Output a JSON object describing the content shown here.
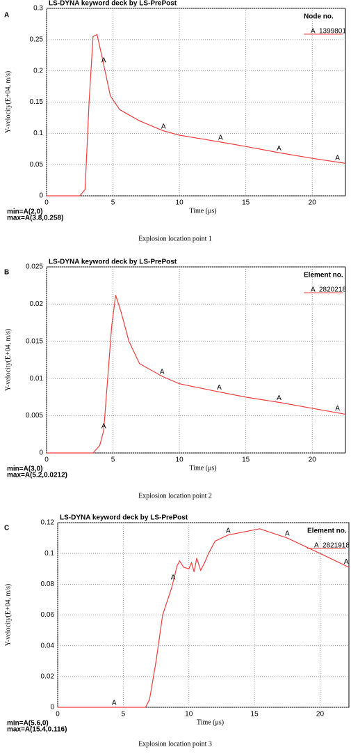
{
  "chart_data": [
    {
      "type": "line",
      "panel": "A",
      "title": "LS-DYNA keyword deck by LS-PrePost",
      "x_label": "Time (μs)",
      "y_label": "Y-velocity(E+04, m/s)",
      "legend_title": "Node no.",
      "x": [
        0,
        2.5,
        2.9,
        3.2,
        3.5,
        3.8,
        4.2,
        4.8,
        5.5,
        7,
        8.8,
        10,
        12,
        13.1,
        15,
        17.5,
        20,
        22.5
      ],
      "series": [
        {
          "name": "1399801",
          "marker": "A",
          "color": "#f03c3c",
          "values": [
            0,
            0,
            0.01,
            0.15,
            0.255,
            0.258,
            0.22,
            0.16,
            0.138,
            0.12,
            0.104,
            0.097,
            0.09,
            0.086,
            0.079,
            0.069,
            0.06,
            0.052
          ]
        }
      ],
      "xlim": [
        0,
        22.5
      ],
      "xticks": [
        0,
        5,
        10,
        15,
        20
      ],
      "ylim": [
        0,
        0.3
      ],
      "yticks": [
        0,
        0.05,
        0.1,
        0.15,
        0.2,
        0.25,
        0.3
      ],
      "grid": true,
      "min_label": "min=A(2,0)",
      "max_label": "max=A(3.8,0.258)",
      "caption": "Explosion location point 1"
    },
    {
      "type": "line",
      "panel": "B",
      "title": "LS-DYNA keyword deck by LS-PrePost",
      "x_label": "Time (μs)",
      "y_label": "Y-velocity(E+04, m/s)",
      "legend_title": "Element no.",
      "x": [
        0,
        3.5,
        4,
        4.3,
        4.6,
        4.9,
        5.2,
        5.6,
        6.2,
        7,
        8.7,
        10,
        13,
        15,
        17.5,
        20,
        22.5
      ],
      "series": [
        {
          "name": "2820218",
          "marker": "A",
          "color": "#f03c3c",
          "values": [
            0,
            0,
            0.001,
            0.003,
            0.01,
            0.017,
            0.0212,
            0.019,
            0.015,
            0.012,
            0.0103,
            0.0093,
            0.0082,
            0.0075,
            0.0068,
            0.006,
            0.0052
          ]
        }
      ],
      "xlim": [
        0,
        22.5
      ],
      "xticks": [
        0,
        5,
        10,
        15,
        20
      ],
      "ylim": [
        0,
        0.025
      ],
      "yticks": [
        0,
        0.005,
        0.01,
        0.015,
        0.02,
        0.025
      ],
      "grid": true,
      "min_label": "min=A(3,0)",
      "max_label": "max=A(5.2,0.0212)",
      "caption": "Explosion location point 2"
    },
    {
      "type": "line",
      "panel": "C",
      "title": "LS-DYNA keyword deck by LS-PrePost",
      "x_label": "Time (μs)",
      "y_label": "Y-velocity(E+04, m/s)",
      "legend_title": "Element no.",
      "x": [
        0,
        6.7,
        7,
        7.5,
        8,
        8.7,
        9.1,
        9.3,
        9.6,
        10,
        10.2,
        10.4,
        10.6,
        10.9,
        11.2,
        11.5,
        12,
        13,
        15.4,
        17.5,
        20,
        22.2
      ],
      "series": [
        {
          "name": "2821918",
          "marker": "A",
          "color": "#f03c3c",
          "values": [
            0,
            0,
            0.005,
            0.03,
            0.06,
            0.078,
            0.092,
            0.095,
            0.091,
            0.09,
            0.094,
            0.088,
            0.097,
            0.089,
            0.094,
            0.1,
            0.108,
            0.112,
            0.116,
            0.11,
            0.1,
            0.091
          ]
        }
      ],
      "xlim": [
        0,
        22.2
      ],
      "xticks": [
        0,
        5,
        10,
        15,
        20
      ],
      "ylim": [
        0,
        0.12
      ],
      "yticks": [
        0,
        0.02,
        0.04,
        0.06,
        0.08,
        0.1,
        0.12
      ],
      "grid": true,
      "min_label": "min=A(5.6,0)",
      "max_label": "max=A(15.4,0.116)",
      "caption": "Explosion location point 3"
    }
  ]
}
